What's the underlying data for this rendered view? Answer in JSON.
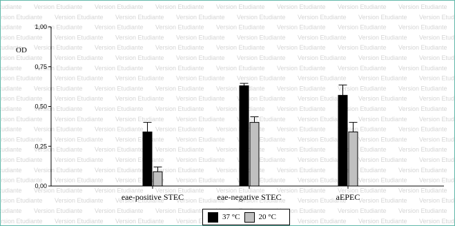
{
  "watermark_text": "Version Etudiante",
  "chart_data": {
    "type": "bar",
    "title": "",
    "xlabel": "",
    "ylabel": "OD",
    "ylim": [
      0,
      1.0
    ],
    "yticks": [
      0,
      0.25,
      0.5,
      0.75,
      1.0
    ],
    "ytick_labels": [
      "0,00",
      "0,25",
      "0,50",
      "0,75",
      "1,00"
    ],
    "grid": false,
    "legend_position": "bottom-center",
    "categories": [
      "eae-positive STEC",
      "eae-negative STEC",
      "aEPEC"
    ],
    "series": [
      {
        "name": "37 °C",
        "color": "#000000",
        "values": [
          0.34,
          0.63,
          0.57
        ],
        "errors": [
          0.06,
          0.015,
          0.065
        ]
      },
      {
        "name": "20 °C",
        "color": "#c0c0c0",
        "values": [
          0.09,
          0.4,
          0.34
        ],
        "errors": [
          0.03,
          0.035,
          0.06
        ]
      }
    ]
  }
}
